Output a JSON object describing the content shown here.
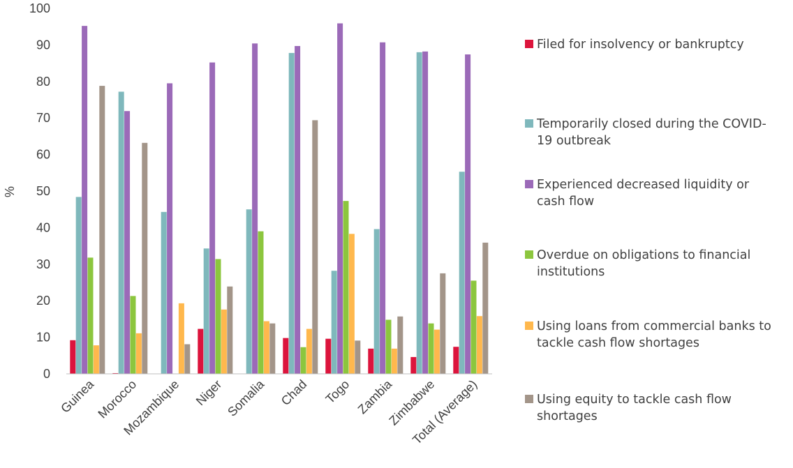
{
  "chart_data": {
    "type": "bar",
    "title": "",
    "xlabel": "",
    "ylabel": "%",
    "ylim": [
      0,
      100
    ],
    "yticks": [
      0,
      10,
      20,
      30,
      40,
      50,
      60,
      70,
      80,
      90,
      100
    ],
    "grid": false,
    "legend_position": "right",
    "categories": [
      "Guinea",
      "Morocco",
      "Mozambique",
      "Niger",
      "Somalia",
      "Chad",
      "Togo",
      "Zambia",
      "Zimbabwe",
      "Total (Average)"
    ],
    "series": [
      {
        "name": "Filed for insolvency or bankruptcy",
        "legend_lines": [
          "Filed for insolvency or bankruptcy"
        ],
        "color": "#dc143c",
        "values": [
          9.2,
          0.2,
          0,
          12.3,
          0,
          9.8,
          9.6,
          6.9,
          4.6,
          7.4
        ]
      },
      {
        "name": "Temporarily closed during the COVID-19 outbreak",
        "legend_lines": [
          "Temporarily closed during the COVID-",
          "19 outbreak"
        ],
        "color": "#7fb8bc",
        "values": [
          48.4,
          77.2,
          44.3,
          34.3,
          45.0,
          87.8,
          28.2,
          39.6,
          88.0,
          55.3
        ]
      },
      {
        "name": "Experienced decreased liquidity or cash flow",
        "legend_lines": [
          "Experienced decreased liquidity or",
          "cash flow"
        ],
        "color": "#9b6ab8",
        "values": [
          95.2,
          71.9,
          79.5,
          85.2,
          90.4,
          89.7,
          95.9,
          90.7,
          88.2,
          87.4
        ]
      },
      {
        "name": "Overdue on obligations to financial institutions",
        "legend_lines": [
          "Overdue on obligations to financial",
          "institutions"
        ],
        "color": "#8cc63e",
        "values": [
          31.8,
          21.3,
          0,
          31.4,
          39.0,
          7.3,
          47.3,
          14.8,
          13.8,
          25.5
        ]
      },
      {
        "name": "Using loans from commercial banks to tackle cash flow shortages",
        "legend_lines": [
          "Using loans from commercial banks to",
          "tackle cash flow shortages"
        ],
        "color": "#ffb84d",
        "values": [
          7.8,
          11.1,
          19.3,
          17.6,
          14.4,
          12.3,
          38.3,
          6.9,
          12.1,
          15.8
        ]
      },
      {
        "name": "Using equity to tackle cash flow shortages",
        "legend_lines": [
          "Using equity to tackle cash flow",
          "shortages"
        ],
        "color": "#a39589",
        "values": [
          78.8,
          63.2,
          8.1,
          23.9,
          13.8,
          69.4,
          9.1,
          15.7,
          27.5,
          35.9
        ]
      }
    ]
  }
}
